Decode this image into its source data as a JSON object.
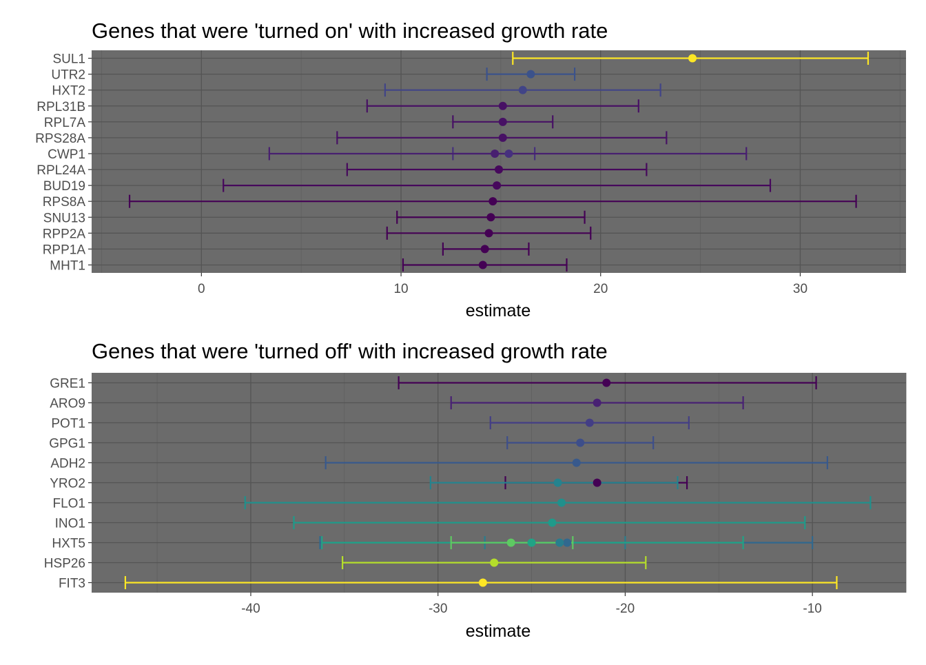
{
  "chart_data": [
    {
      "type": "errorbar",
      "title": "Genes that were 'turned on' with increased growth rate",
      "xlabel": "estimate",
      "ylabel": "",
      "xlim": [
        -5.5,
        35.3
      ],
      "xticks": [
        0,
        10,
        20,
        30
      ],
      "xtick_labels": [
        "0",
        "10",
        "20",
        "30"
      ],
      "categories": [
        "SUL1",
        "UTR2",
        "HXT2",
        "RPL31B",
        "RPL7A",
        "RPS28A",
        "CWP1",
        "RPL24A",
        "BUD19",
        "RPS8A",
        "SNU13",
        "RPP2A",
        "RPP1A",
        "MHT1"
      ],
      "grid": true,
      "legend": "none",
      "color_scale": "viridis",
      "points": [
        {
          "gene": "SUL1",
          "estimate": 24.6,
          "low": 15.6,
          "high": 33.4,
          "color": "#FDE725"
        },
        {
          "gene": "UTR2",
          "estimate": 16.5,
          "low": 14.3,
          "high": 18.7,
          "color": "#3B528B"
        },
        {
          "gene": "HXT2",
          "estimate": 16.1,
          "low": 9.2,
          "high": 23.0,
          "color": "#414487"
        },
        {
          "gene": "RPL31B",
          "estimate": 15.1,
          "low": 8.3,
          "high": 21.9,
          "color": "#471164"
        },
        {
          "gene": "RPL7A",
          "estimate": 15.1,
          "low": 12.6,
          "high": 17.6,
          "color": "#471164"
        },
        {
          "gene": "RPS28A",
          "estimate": 15.1,
          "low": 6.8,
          "high": 23.3,
          "color": "#471164"
        },
        {
          "gene": "CWP1",
          "estimate": 15.4,
          "low": 12.6,
          "high": 16.7,
          "color": "#46307E"
        },
        {
          "gene": "CWP1",
          "estimate": 14.7,
          "low": 3.4,
          "high": 27.3,
          "color": "#481F70"
        },
        {
          "gene": "RPL24A",
          "estimate": 14.9,
          "low": 7.3,
          "high": 22.3,
          "color": "#46085C"
        },
        {
          "gene": "BUD19",
          "estimate": 14.8,
          "low": 1.1,
          "high": 28.5,
          "color": "#46085C"
        },
        {
          "gene": "RPS8A",
          "estimate": 14.6,
          "low": -3.6,
          "high": 32.8,
          "color": "#440154"
        },
        {
          "gene": "SNU13",
          "estimate": 14.5,
          "low": 9.8,
          "high": 19.2,
          "color": "#440154"
        },
        {
          "gene": "RPP2A",
          "estimate": 14.4,
          "low": 9.3,
          "high": 19.5,
          "color": "#440154"
        },
        {
          "gene": "RPP1A",
          "estimate": 14.2,
          "low": 12.1,
          "high": 16.4,
          "color": "#440154"
        },
        {
          "gene": "MHT1",
          "estimate": 14.1,
          "low": 10.1,
          "high": 18.3,
          "color": "#440154"
        }
      ]
    },
    {
      "type": "errorbar",
      "title": "Genes that were 'turned off' with increased growth rate",
      "xlabel": "estimate",
      "ylabel": "",
      "xlim": [
        -48.5,
        -5.0
      ],
      "xticks": [
        -40,
        -30,
        -20,
        -10
      ],
      "xtick_labels": [
        "-40",
        "-30",
        "-20",
        "-10"
      ],
      "categories": [
        "GRE1",
        "ARO9",
        "POT1",
        "GPG1",
        "ADH2",
        "YRO2",
        "FLO1",
        "INO1",
        "HXT5",
        "HSP26",
        "FIT3"
      ],
      "grid": true,
      "legend": "none",
      "color_scale": "viridis",
      "points": [
        {
          "gene": "GRE1",
          "estimate": -21.0,
          "low": -32.1,
          "high": -9.8,
          "color": "#440154"
        },
        {
          "gene": "ARO9",
          "estimate": -21.5,
          "low": -29.3,
          "high": -13.7,
          "color": "#482173"
        },
        {
          "gene": "POT1",
          "estimate": -21.9,
          "low": -27.2,
          "high": -16.6,
          "color": "#433E85"
        },
        {
          "gene": "GPG1",
          "estimate": -22.4,
          "low": -26.3,
          "high": -18.5,
          "color": "#3D4E8A"
        },
        {
          "gene": "ADH2",
          "estimate": -22.6,
          "low": -36.0,
          "high": -9.2,
          "color": "#38598C"
        },
        {
          "gene": "YRO2",
          "estimate": -21.5,
          "low": -26.4,
          "high": -16.7,
          "color": "#440154"
        },
        {
          "gene": "YRO2",
          "estimate": -23.6,
          "low": -30.4,
          "high": -17.2,
          "color": "#25838E"
        },
        {
          "gene": "FLO1",
          "estimate": -23.4,
          "low": -40.3,
          "high": -6.9,
          "color": "#21908C"
        },
        {
          "gene": "INO1",
          "estimate": -23.9,
          "low": -37.7,
          "high": -10.4,
          "color": "#1F9A8A"
        },
        {
          "gene": "HXT5",
          "estimate": -23.1,
          "low": -36.3,
          "high": -10.0,
          "color": "#31688E"
        },
        {
          "gene": "HXT5",
          "estimate": -23.5,
          "low": -27.5,
          "high": -20.0,
          "color": "#287D8E"
        },
        {
          "gene": "HXT5",
          "estimate": -25.0,
          "low": -36.2,
          "high": -13.7,
          "color": "#20A386"
        },
        {
          "gene": "HXT5",
          "estimate": -26.1,
          "low": -29.3,
          "high": -22.8,
          "color": "#5EC962"
        },
        {
          "gene": "HSP26",
          "estimate": -27.0,
          "low": -35.1,
          "high": -18.9,
          "color": "#B5DE2B"
        },
        {
          "gene": "FIT3",
          "estimate": -27.6,
          "low": -46.7,
          "high": -8.7,
          "color": "#FDE725"
        }
      ]
    }
  ]
}
